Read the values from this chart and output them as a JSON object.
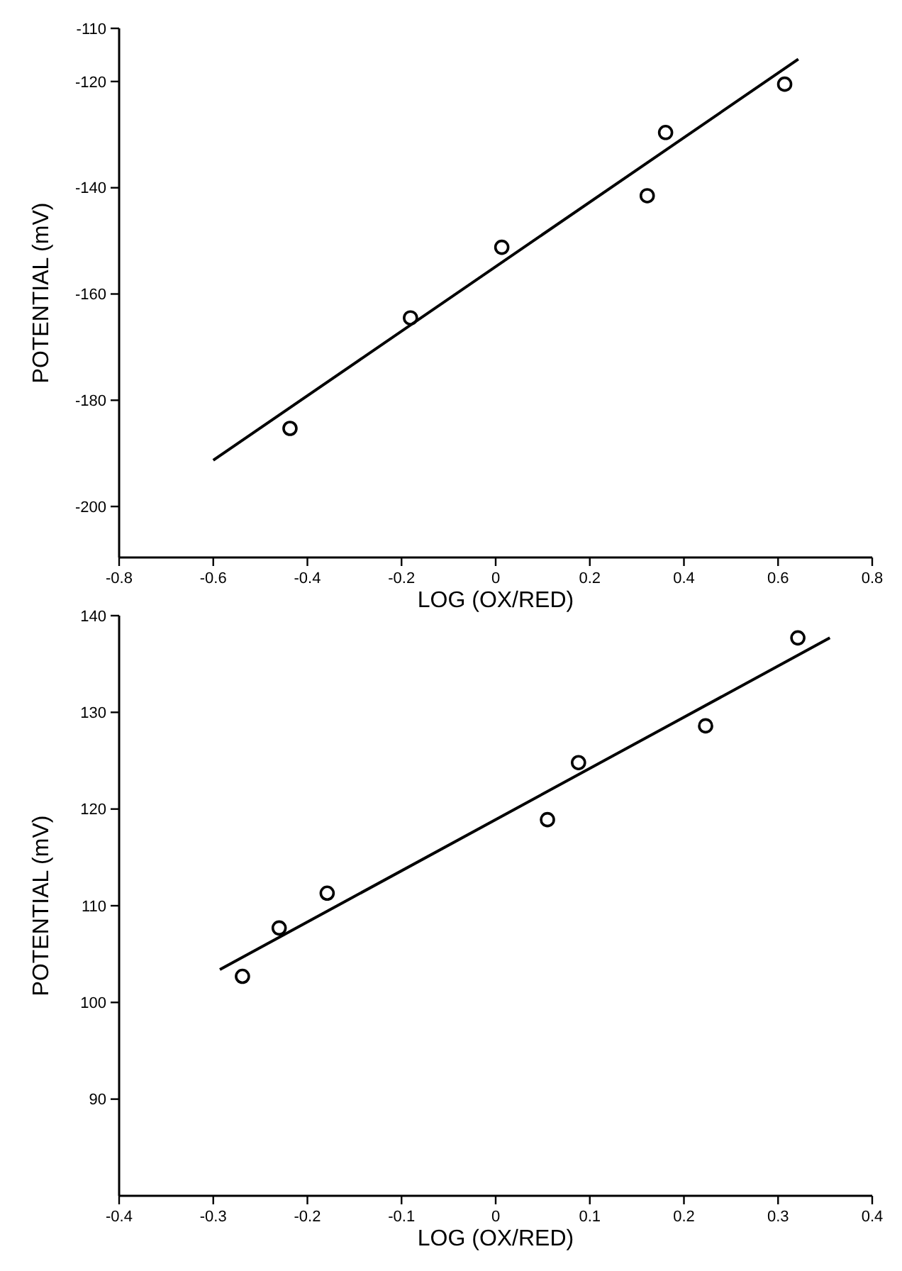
{
  "chart_data": [
    {
      "type": "scatter",
      "xlabel": "LOG (OX/RED)",
      "ylabel": "POTENTIAL (mV)",
      "xlim": [
        -0.8,
        0.8
      ],
      "xticks": [
        -0.8,
        -0.6,
        -0.4,
        -0.2,
        0,
        0.2,
        0.4,
        0.6,
        0.8
      ],
      "ylim": [
        -209.6,
        -110
      ],
      "yticks": [
        -110,
        -120,
        -140,
        -160,
        -180,
        -200
      ],
      "marker": "circle",
      "grid": false,
      "series": [
        {
          "color": "#000000",
          "x": [
            -0.437,
            -0.181,
            0.013,
            0.322,
            0.361,
            0.614
          ],
          "values": [
            -185.3,
            -164.5,
            -151.2,
            -141.5,
            -129.6,
            -120.5
          ]
        },
        {
          "type": "line",
          "color": "#000000",
          "marker": "none",
          "line_style": "solid",
          "x": [
            -0.6,
            0.643
          ],
          "values": [
            -191.3,
            -115.8
          ]
        }
      ]
    },
    {
      "type": "scatter",
      "xlabel": "LOG (OX/RED)",
      "ylabel": "POTENTIAL (mV)",
      "xlim": [
        -0.4,
        0.4
      ],
      "xticks": [
        -0.4,
        -0.3,
        -0.2,
        -0.1,
        0,
        0.1,
        0.2,
        0.3,
        0.4
      ],
      "ylim": [
        80,
        140
      ],
      "yticks": [
        90,
        100,
        110,
        120,
        130,
        140
      ],
      "marker": "circle",
      "grid": false,
      "series": [
        {
          "color": "#000000",
          "x": [
            -0.269,
            -0.23,
            -0.179,
            0.055,
            0.088,
            0.223,
            0.321
          ],
          "values": [
            102.7,
            107.7,
            111.3,
            118.9,
            124.8,
            128.6,
            137.7
          ]
        },
        {
          "type": "line",
          "color": "#000000",
          "marker": "none",
          "line_style": "solid",
          "x": [
            -0.293,
            0.355
          ],
          "values": [
            103.4,
            137.7
          ]
        }
      ]
    }
  ]
}
